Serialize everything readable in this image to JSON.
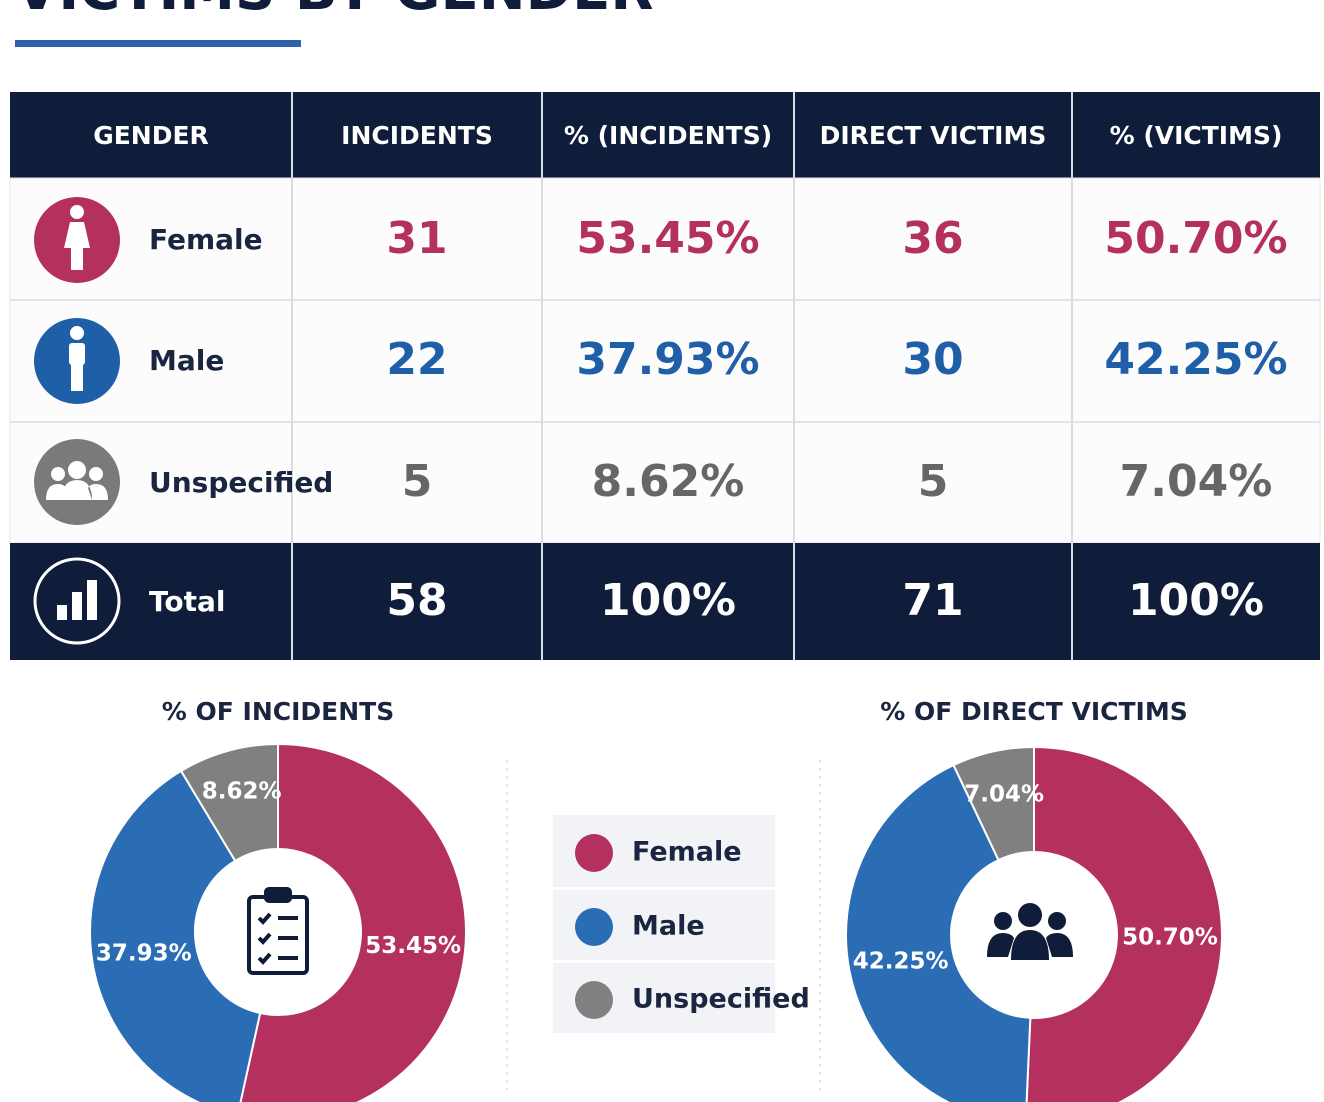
{
  "title": "VICTIMS BY GENDER",
  "table": {
    "header": [
      "GENDER",
      "INCIDENTS",
      "% (INCIDENTS)",
      "DIRECT VICTIMS",
      "% (VICTIMS)"
    ],
    "rows": [
      [
        "Female",
        "31",
        "53.45%",
        "36",
        "50.70%"
      ],
      [
        "Male",
        "22",
        "37.93%",
        "30",
        "42.25%"
      ],
      [
        "Unspecified",
        "5",
        "8.62%",
        "5",
        "7.04%"
      ]
    ],
    "total": [
      "Total",
      "58",
      "100%",
      "71",
      "100%"
    ]
  },
  "chart_data": [
    {
      "type": "pie",
      "title": "% OF INCIDENTS",
      "categories": [
        "Female",
        "Male",
        "Unspecified"
      ],
      "values": [
        53.45,
        37.93,
        8.62
      ],
      "value_labels": [
        "53.45%",
        "37.93%",
        "8.62%"
      ],
      "colors": [
        "#b3305f",
        "#2a6db5",
        "#808080"
      ]
    },
    {
      "type": "pie",
      "title": "% OF DIRECT VICTIMS",
      "categories": [
        "Female",
        "Male",
        "Unspecified"
      ],
      "values": [
        50.7,
        42.25,
        7.04
      ],
      "value_labels": [
        "50.70%",
        "42.25%",
        "7.04%"
      ],
      "colors": [
        "#b3305f",
        "#2a6db5",
        "#808080"
      ]
    }
  ]
}
